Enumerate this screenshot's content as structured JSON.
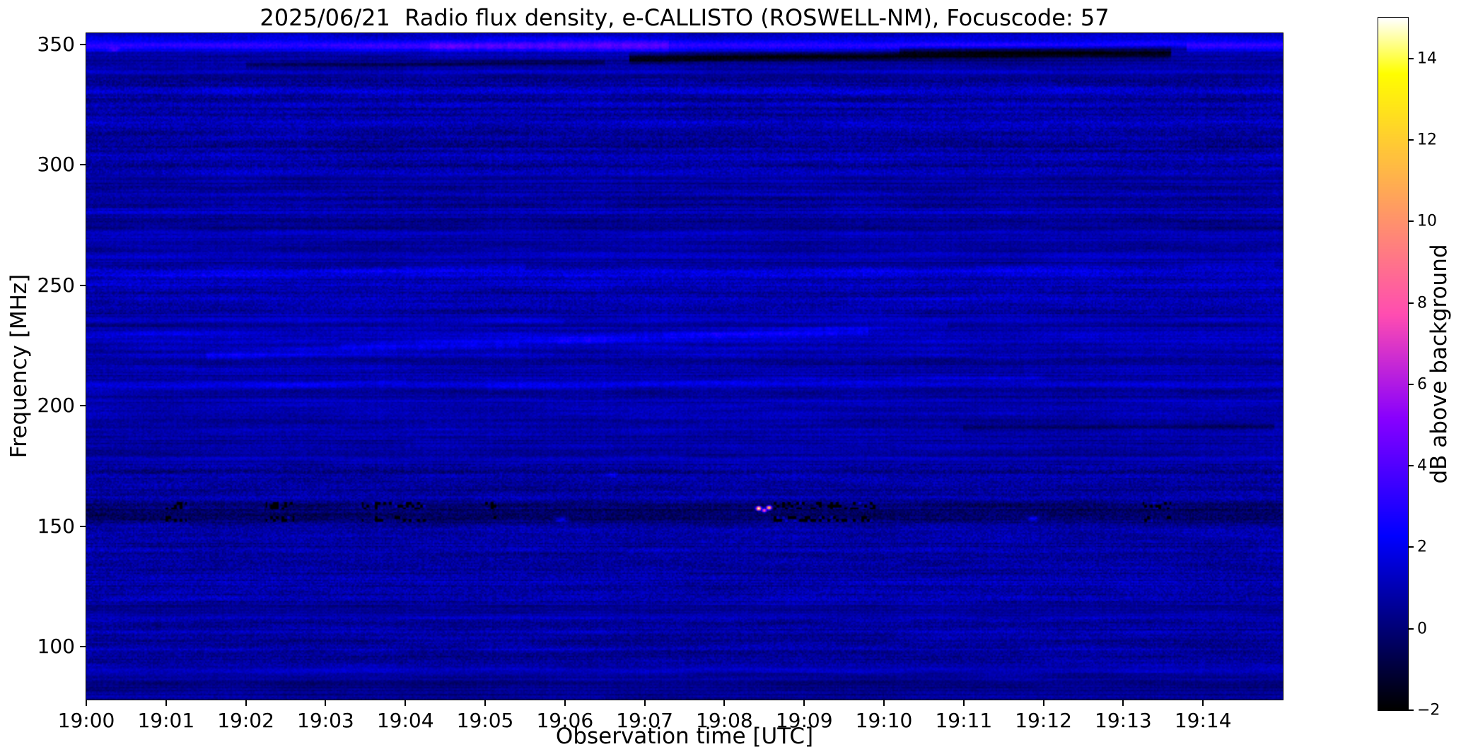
{
  "figure": {
    "background_color": "#ffffff"
  },
  "chart_data": {
    "type": "heatmap",
    "title": "2025/06/21  Radio flux density, e-CALLISTO (ROSWELL-NM), Focuscode: 57",
    "xlabel": "Observation time [UTC]",
    "ylabel": "Frequency [MHz]",
    "x_tick_labels": [
      "19:00",
      "19:01",
      "19:02",
      "19:03",
      "19:04",
      "19:05",
      "19:06",
      "19:07",
      "19:08",
      "19:09",
      "19:10",
      "19:11",
      "19:12",
      "19:13",
      "19:14"
    ],
    "x_range_minutes": [
      0,
      15
    ],
    "y_tick_values": [
      350,
      300,
      250,
      200,
      150,
      100
    ],
    "ylim": [
      78,
      354.7
    ],
    "colorbar": {
      "label": "dB above background",
      "tick_values": [
        -2,
        0,
        2,
        4,
        6,
        8,
        10,
        12,
        14
      ],
      "vmin": -2,
      "vmax": 15,
      "colormap": "gnuplot2"
    },
    "background_level_db": 0.55,
    "bands": [
      {
        "f": 352.5,
        "w": 1.0,
        "a": 1.0
      },
      {
        "f": 349.3,
        "w": 1.6,
        "a": 2.4
      },
      {
        "f": 339.0,
        "w": 1.3,
        "a": 0.5
      },
      {
        "f": 331.0,
        "w": 1.3,
        "a": 0.7
      },
      {
        "f": 325.0,
        "w": 1.1,
        "a": 0.55
      },
      {
        "f": 318.0,
        "w": 1.3,
        "a": 0.65
      },
      {
        "f": 311.0,
        "w": 1.1,
        "a": 0.5
      },
      {
        "f": 303.0,
        "w": 1.3,
        "a": 0.6
      },
      {
        "f": 296.5,
        "w": 1.4,
        "a": 0.75
      },
      {
        "f": 288.0,
        "w": 1.1,
        "a": 0.45
      },
      {
        "f": 281.0,
        "w": 1.4,
        "a": 0.6
      },
      {
        "f": 271.0,
        "w": 1.1,
        "a": 0.45
      },
      {
        "f": 262.0,
        "w": 1.3,
        "a": 0.55
      },
      {
        "f": 255.0,
        "w": 1.8,
        "a": 0.9
      },
      {
        "f": 250.0,
        "w": 1.3,
        "a": 0.75
      },
      {
        "f": 243.0,
        "w": 1.3,
        "a": 0.55
      },
      {
        "f": 236.0,
        "w": 1.3,
        "a": 0.6
      },
      {
        "f": 228.0,
        "w": 2.2,
        "a": 0.7
      },
      {
        "f": 222.0,
        "w": 1.3,
        "a": 0.5
      },
      {
        "f": 215.0,
        "w": 1.1,
        "a": 0.45
      },
      {
        "f": 209.0,
        "w": 1.8,
        "a": 0.8
      },
      {
        "f": 202.0,
        "w": 1.1,
        "a": 0.4
      },
      {
        "f": 195.5,
        "w": 1.2,
        "a": 0.5
      },
      {
        "f": 189.0,
        "w": 1.4,
        "a": 0.55
      },
      {
        "f": 183.0,
        "w": 1.1,
        "a": 0.4
      },
      {
        "f": 176.5,
        "w": 1.2,
        "a": 0.45
      },
      {
        "f": 170.0,
        "w": 1.3,
        "a": 0.4
      },
      {
        "f": 163.0,
        "w": 1.1,
        "a": 0.35
      },
      {
        "f": 157.5,
        "w": 1.8,
        "a": -0.5
      },
      {
        "f": 155.5,
        "w": 3.0,
        "a": -0.35
      },
      {
        "f": 152.5,
        "w": 1.4,
        "a": -0.3
      },
      {
        "f": 146.0,
        "w": 1.2,
        "a": 0.35
      },
      {
        "f": 140.0,
        "w": 1.4,
        "a": 0.4
      },
      {
        "f": 133.5,
        "w": 1.2,
        "a": 0.4
      },
      {
        "f": 127.0,
        "w": 1.2,
        "a": 0.35
      },
      {
        "f": 120.0,
        "w": 1.2,
        "a": 0.3
      },
      {
        "f": 113.0,
        "w": 1.2,
        "a": 0.3
      },
      {
        "f": 106.0,
        "w": 1.4,
        "a": 0.4
      },
      {
        "f": 99.0,
        "w": 1.4,
        "a": 0.4
      },
      {
        "f": 91.0,
        "w": 1.5,
        "a": 0.3
      },
      {
        "f": 83.0,
        "w": 2.0,
        "a": -0.25
      }
    ],
    "texture_zones": [
      {
        "f0": 296,
        "f1": 336,
        "amp": 0.55
      },
      {
        "f0": 276,
        "f1": 292,
        "amp": 0.4
      },
      {
        "f0": 238,
        "f1": 258,
        "amp": 0.5
      },
      {
        "f0": 204,
        "f1": 232,
        "amp": 0.35
      },
      {
        "f0": 178,
        "f1": 200,
        "amp": 0.35
      },
      {
        "f0": 118,
        "f1": 176,
        "amp": 0.55
      },
      {
        "f0": 92,
        "f1": 112,
        "amp": 0.5
      }
    ],
    "drift_lines": [
      {
        "t_start": 1.5,
        "t_end": 9.8,
        "f_start": 221,
        "f_end": 231,
        "width_mhz": 1.3,
        "db": 1.1
      },
      {
        "t_start": 3.2,
        "t_end": 10.8,
        "f_start": 224.5,
        "f_end": 234,
        "width_mhz": 1.1,
        "db": 0.8
      },
      {
        "t_start": 0.0,
        "t_end": 6.0,
        "f_start": 229,
        "f_end": 235,
        "width_mhz": 1.0,
        "db": 0.6
      },
      {
        "t_start": 0.2,
        "t_end": 5.5,
        "f_start": 252,
        "f_end": 258,
        "width_mhz": 1.2,
        "db": 0.7
      },
      {
        "t_start": 6.0,
        "t_end": 14.9,
        "f_start": 253,
        "f_end": 259,
        "width_mhz": 1.2,
        "db": 0.6
      },
      {
        "t_start": 0.0,
        "t_end": 4.0,
        "f_start": 206,
        "f_end": 210,
        "width_mhz": 1.2,
        "db": 0.7
      },
      {
        "t_start": 5.0,
        "t_end": 12.0,
        "f_start": 208,
        "f_end": 212,
        "width_mhz": 1.1,
        "db": 0.7
      },
      {
        "t_start": 4.3,
        "t_end": 7.3,
        "f_start": 348.8,
        "f_end": 349.6,
        "width_mhz": 2.0,
        "db": 1.2
      },
      {
        "t_start": 9.5,
        "t_end": 14.9,
        "f_start": 243,
        "f_end": 248,
        "width_mhz": 1.0,
        "db": 0.5
      }
    ],
    "dark_streaks": [
      {
        "t_start": 6.8,
        "t_end": 13.6,
        "f_start": 344.2,
        "f_end": 346.4,
        "width_mhz": 1.3,
        "db": -2.6
      },
      {
        "t_start": 10.2,
        "t_end": 13.8,
        "f_start": 347.6,
        "f_end": 348.6,
        "width_mhz": 1.0,
        "db": -1.7
      },
      {
        "t_start": 2.0,
        "t_end": 6.5,
        "f_start": 341.5,
        "f_end": 342.5,
        "width_mhz": 0.8,
        "db": -1.1
      },
      {
        "t_start": 11.0,
        "t_end": 14.9,
        "f_start": 190.5,
        "f_end": 191.5,
        "width_mhz": 0.9,
        "db": -1.0
      }
    ],
    "speckle_clusters": {
      "windows_min": [
        [
          0.95,
          1.25
        ],
        [
          2.25,
          2.6
        ],
        [
          3.45,
          4.25
        ],
        [
          5.0,
          5.15
        ],
        [
          8.6,
          9.9
        ],
        [
          13.25,
          13.6
        ]
      ],
      "bands_mhz": [
        153.3,
        158.6
      ],
      "band_halfwidth_mhz": 1.2,
      "dot_probability": 0.3,
      "dot_delta_db": -3.2
    },
    "hotspots": [
      {
        "t_min": 8.43,
        "f_mhz": 157.4,
        "db": 15
      },
      {
        "t_min": 8.56,
        "f_mhz": 157.7,
        "db": 13
      },
      {
        "t_min": 8.5,
        "f_mhz": 156.6,
        "db": 9
      }
    ],
    "bright_dashes": [
      {
        "t_min": 5.95,
        "f_mhz": 152.7,
        "db": 2.4
      },
      {
        "t_min": 11.87,
        "f_mhz": 153.2,
        "db": 2.8
      },
      {
        "t_min": 6.6,
        "f_mhz": 171.5,
        "db": 1.6
      },
      {
        "t_min": 0.35,
        "f_mhz": 347.8,
        "db": 1.5
      }
    ]
  }
}
